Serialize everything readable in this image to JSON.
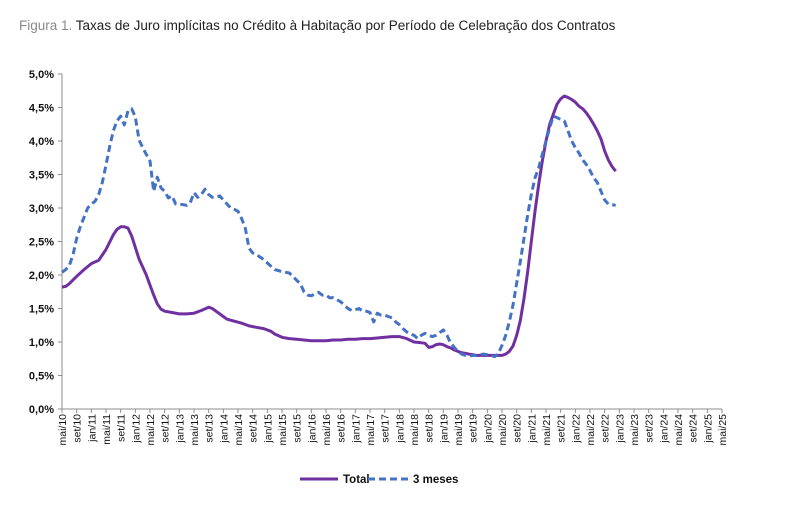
{
  "figure_label": "Figura 1.",
  "chart_data": {
    "type": "line",
    "title": "Taxas de Juro implícitas no Crédito à Habitação por Período de Celebração dos Contratos",
    "xlabel": "",
    "ylabel": "",
    "ylim": [
      0,
      5
    ],
    "y_ticks": [
      "0,0%",
      "0,5%",
      "1,0%",
      "1,5%",
      "2,0%",
      "2,5%",
      "3,0%",
      "3,5%",
      "4,0%",
      "4,5%",
      "5,0%"
    ],
    "x_ticks": [
      "mai/10",
      "set/10",
      "jan/11",
      "mai/11",
      "set/11",
      "jan/12",
      "mai/12",
      "set/12",
      "jan/13",
      "mai/13",
      "set/13",
      "jan/14",
      "mai/14",
      "set/14",
      "jan/15",
      "mai/15",
      "set/15",
      "jan/16",
      "mai/16",
      "set/16",
      "jan/17",
      "mai/17",
      "set/17",
      "jan/18",
      "mai/18",
      "set/18",
      "jan/19",
      "mai/19",
      "set/19",
      "jan/20",
      "mai/20",
      "set/20",
      "jan/21",
      "mai/21",
      "set/21",
      "jan/22",
      "mai/22",
      "set/22",
      "jan/23",
      "mai/23",
      "set/23",
      "jan/24",
      "mai/24",
      "set/24",
      "jan/25",
      "mai/25"
    ],
    "x_index_step": 4,
    "legend_position": "bottom-center",
    "series": [
      {
        "name": "Total",
        "color": "#7030a0",
        "style": "solid",
        "points": [
          [
            0,
            1.82
          ],
          [
            1,
            1.83
          ],
          [
            2,
            1.87
          ],
          [
            4,
            1.98
          ],
          [
            6,
            2.08
          ],
          [
            8,
            2.17
          ],
          [
            10,
            2.22
          ],
          [
            12,
            2.38
          ],
          [
            14,
            2.6
          ],
          [
            15,
            2.68
          ],
          [
            16,
            2.72
          ],
          [
            17,
            2.72
          ],
          [
            18,
            2.7
          ],
          [
            19,
            2.58
          ],
          [
            21,
            2.24
          ],
          [
            23,
            2.0
          ],
          [
            24,
            1.85
          ],
          [
            25,
            1.7
          ],
          [
            26,
            1.57
          ],
          [
            27,
            1.49
          ],
          [
            28,
            1.46
          ],
          [
            30,
            1.44
          ],
          [
            32,
            1.42
          ],
          [
            34,
            1.42
          ],
          [
            36,
            1.43
          ],
          [
            38,
            1.47
          ],
          [
            40,
            1.52
          ],
          [
            41,
            1.5
          ],
          [
            42,
            1.46
          ],
          [
            44,
            1.38
          ],
          [
            45,
            1.34
          ],
          [
            47,
            1.31
          ],
          [
            49,
            1.28
          ],
          [
            51,
            1.24
          ],
          [
            53,
            1.22
          ],
          [
            55,
            1.2
          ],
          [
            57,
            1.16
          ],
          [
            58,
            1.12
          ],
          [
            60,
            1.07
          ],
          [
            62,
            1.05
          ],
          [
            64,
            1.04
          ],
          [
            66,
            1.03
          ],
          [
            68,
            1.02
          ],
          [
            70,
            1.02
          ],
          [
            72,
            1.02
          ],
          [
            74,
            1.03
          ],
          [
            76,
            1.03
          ],
          [
            78,
            1.04
          ],
          [
            80,
            1.04
          ],
          [
            82,
            1.05
          ],
          [
            84,
            1.05
          ],
          [
            86,
            1.06
          ],
          [
            88,
            1.07
          ],
          [
            90,
            1.08
          ],
          [
            92,
            1.08
          ],
          [
            94,
            1.05
          ],
          [
            96,
            1.0
          ],
          [
            98,
            0.99
          ],
          [
            99,
            0.98
          ],
          [
            100,
            0.92
          ],
          [
            101,
            0.93
          ],
          [
            102,
            0.96
          ],
          [
            103,
            0.97
          ],
          [
            104,
            0.96
          ],
          [
            105,
            0.93
          ],
          [
            106,
            0.91
          ],
          [
            107,
            0.88
          ],
          [
            108,
            0.86
          ],
          [
            109,
            0.84
          ],
          [
            110,
            0.83
          ],
          [
            111,
            0.82
          ],
          [
            112,
            0.81
          ],
          [
            113,
            0.8
          ],
          [
            114,
            0.8
          ],
          [
            116,
            0.8
          ],
          [
            118,
            0.8
          ],
          [
            120,
            0.8
          ],
          [
            121,
            0.82
          ],
          [
            122,
            0.86
          ],
          [
            123,
            0.94
          ],
          [
            124,
            1.1
          ],
          [
            125,
            1.32
          ],
          [
            126,
            1.65
          ],
          [
            127,
            2.05
          ],
          [
            128,
            2.5
          ],
          [
            129,
            2.95
          ],
          [
            130,
            3.35
          ],
          [
            131,
            3.7
          ],
          [
            132,
            4.0
          ],
          [
            133,
            4.25
          ],
          [
            134,
            4.4
          ],
          [
            135,
            4.55
          ],
          [
            136,
            4.63
          ],
          [
            137,
            4.67
          ],
          [
            138,
            4.65
          ],
          [
            139,
            4.62
          ],
          [
            140,
            4.58
          ],
          [
            141,
            4.52
          ],
          [
            142,
            4.48
          ],
          [
            143,
            4.42
          ],
          [
            144,
            4.34
          ],
          [
            145,
            4.25
          ],
          [
            146,
            4.15
          ],
          [
            147,
            4.03
          ],
          [
            148,
            3.85
          ],
          [
            149,
            3.72
          ],
          [
            150,
            3.62
          ],
          [
            151,
            3.55
          ]
        ]
      },
      {
        "name": "3 meses",
        "color": "#4472c4",
        "style": "dashed",
        "points": [
          [
            0,
            2.04
          ],
          [
            1,
            2.08
          ],
          [
            2,
            2.14
          ],
          [
            3,
            2.3
          ],
          [
            4,
            2.55
          ],
          [
            5,
            2.72
          ],
          [
            6,
            2.86
          ],
          [
            7,
            3.0
          ],
          [
            8,
            3.06
          ],
          [
            9,
            3.1
          ],
          [
            10,
            3.2
          ],
          [
            11,
            3.38
          ],
          [
            12,
            3.64
          ],
          [
            13,
            3.92
          ],
          [
            14,
            4.15
          ],
          [
            15,
            4.3
          ],
          [
            16,
            4.37
          ],
          [
            17,
            4.24
          ],
          [
            18,
            4.45
          ],
          [
            19,
            4.48
          ],
          [
            20,
            4.36
          ],
          [
            21,
            4.02
          ],
          [
            22,
            3.9
          ],
          [
            23,
            3.8
          ],
          [
            24,
            3.7
          ],
          [
            25,
            3.25
          ],
          [
            26,
            3.46
          ],
          [
            27,
            3.3
          ],
          [
            28,
            3.25
          ],
          [
            29,
            3.15
          ],
          [
            30,
            3.18
          ],
          [
            31,
            3.06
          ],
          [
            32,
            3.06
          ],
          [
            34,
            3.04
          ],
          [
            35,
            3.08
          ],
          [
            36,
            3.23
          ],
          [
            37,
            3.16
          ],
          [
            38,
            3.2
          ],
          [
            39,
            3.28
          ],
          [
            40,
            3.2
          ],
          [
            41,
            3.16
          ],
          [
            42,
            3.16
          ],
          [
            43,
            3.18
          ],
          [
            44,
            3.12
          ],
          [
            45,
            3.06
          ],
          [
            46,
            3.0
          ],
          [
            47,
            2.98
          ],
          [
            48,
            2.95
          ],
          [
            49,
            2.84
          ],
          [
            50,
            2.7
          ],
          [
            51,
            2.4
          ],
          [
            52,
            2.33
          ],
          [
            53,
            2.3
          ],
          [
            54,
            2.27
          ],
          [
            55,
            2.23
          ],
          [
            56,
            2.18
          ],
          [
            57,
            2.13
          ],
          [
            58,
            2.08
          ],
          [
            60,
            2.05
          ],
          [
            62,
            2.03
          ],
          [
            63,
            1.98
          ],
          [
            64,
            1.92
          ],
          [
            65,
            1.87
          ],
          [
            66,
            1.75
          ],
          [
            67,
            1.7
          ],
          [
            68,
            1.69
          ],
          [
            69,
            1.72
          ],
          [
            70,
            1.74
          ],
          [
            71,
            1.7
          ],
          [
            72,
            1.7
          ],
          [
            73,
            1.66
          ],
          [
            74,
            1.66
          ],
          [
            75,
            1.63
          ],
          [
            76,
            1.6
          ],
          [
            77,
            1.55
          ],
          [
            78,
            1.5
          ],
          [
            79,
            1.47
          ],
          [
            80,
            1.48
          ],
          [
            81,
            1.5
          ],
          [
            82,
            1.46
          ],
          [
            83,
            1.46
          ],
          [
            84,
            1.44
          ],
          [
            85,
            1.3
          ],
          [
            86,
            1.43
          ],
          [
            87,
            1.4
          ],
          [
            88,
            1.4
          ],
          [
            89,
            1.38
          ],
          [
            90,
            1.36
          ],
          [
            91,
            1.3
          ],
          [
            92,
            1.26
          ],
          [
            93,
            1.2
          ],
          [
            94,
            1.15
          ],
          [
            95,
            1.12
          ],
          [
            96,
            1.1
          ],
          [
            97,
            1.05
          ],
          [
            98,
            1.1
          ],
          [
            99,
            1.13
          ],
          [
            100,
            1.1
          ],
          [
            101,
            1.08
          ],
          [
            102,
            1.1
          ],
          [
            103,
            1.14
          ],
          [
            104,
            1.18
          ],
          [
            105,
            1.1
          ],
          [
            106,
            0.98
          ],
          [
            107,
            0.92
          ],
          [
            108,
            0.86
          ],
          [
            109,
            0.82
          ],
          [
            110,
            0.8
          ],
          [
            111,
            0.79
          ],
          [
            112,
            0.8
          ],
          [
            113,
            0.8
          ],
          [
            114,
            0.81
          ],
          [
            115,
            0.82
          ],
          [
            116,
            0.81
          ],
          [
            117,
            0.8
          ],
          [
            118,
            0.78
          ],
          [
            119,
            0.83
          ],
          [
            120,
            0.95
          ],
          [
            121,
            1.1
          ],
          [
            122,
            1.3
          ],
          [
            123,
            1.55
          ],
          [
            124,
            1.88
          ],
          [
            125,
            2.2
          ],
          [
            126,
            2.55
          ],
          [
            127,
            2.9
          ],
          [
            128,
            3.2
          ],
          [
            129,
            3.45
          ],
          [
            130,
            3.6
          ],
          [
            131,
            3.8
          ],
          [
            132,
            4.0
          ],
          [
            133,
            4.2
          ],
          [
            134,
            4.37
          ],
          [
            135,
            4.35
          ],
          [
            136,
            4.32
          ],
          [
            137,
            4.3
          ],
          [
            138,
            4.15
          ],
          [
            139,
            4.0
          ],
          [
            140,
            3.9
          ],
          [
            141,
            3.82
          ],
          [
            142,
            3.72
          ],
          [
            143,
            3.65
          ],
          [
            144,
            3.56
          ],
          [
            145,
            3.45
          ],
          [
            146,
            3.38
          ],
          [
            147,
            3.25
          ],
          [
            148,
            3.12
          ],
          [
            149,
            3.06
          ],
          [
            150,
            3.05
          ],
          [
            151,
            3.04
          ]
        ]
      }
    ]
  }
}
